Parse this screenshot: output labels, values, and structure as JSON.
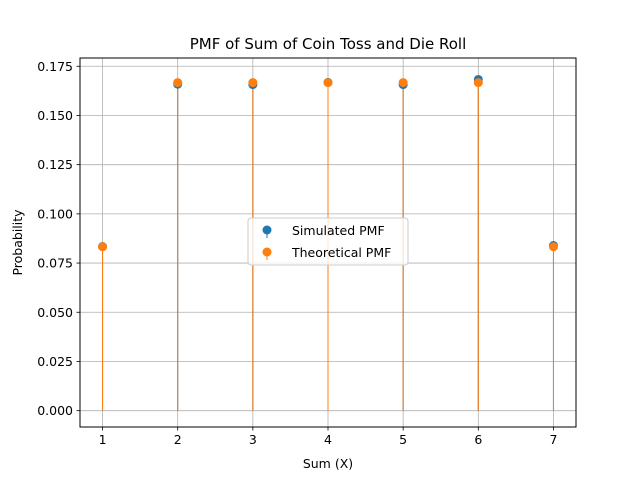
{
  "chart_data": {
    "type": "scatter",
    "title": "PMF of Sum of Coin Toss and Die Roll",
    "xlabel": "Sum (X)",
    "ylabel": "Probability",
    "xlim": [
      0.7,
      7.3
    ],
    "ylim": [
      -0.0083,
      0.1792
    ],
    "x_ticks": [
      1,
      2,
      3,
      4,
      5,
      6,
      7
    ],
    "y_ticks": [
      0.0,
      0.025,
      0.05,
      0.075,
      0.1,
      0.125,
      0.15,
      0.175
    ],
    "y_tick_labels": [
      "0.000",
      "0.025",
      "0.050",
      "0.075",
      "0.100",
      "0.125",
      "0.150",
      "0.175"
    ],
    "grid": true,
    "legend_placement": "center",
    "x": [
      1,
      2,
      3,
      4,
      5,
      6,
      7
    ],
    "series": [
      {
        "name": "Simulated PMF",
        "color": "#1f77b4",
        "values": [
          0.0834,
          0.1659,
          0.1657,
          0.1668,
          0.1657,
          0.1683,
          0.0839
        ]
      },
      {
        "name": "Theoretical PMF",
        "color": "#ff7f0e",
        "values": [
          0.0833,
          0.1667,
          0.1667,
          0.1667,
          0.1667,
          0.1667,
          0.0833
        ]
      }
    ]
  }
}
